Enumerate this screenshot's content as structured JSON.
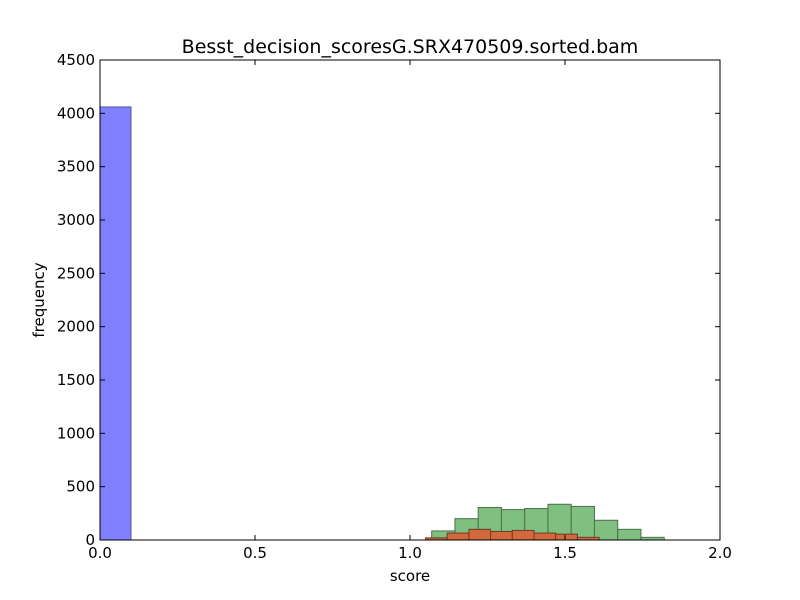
{
  "chart_data": {
    "type": "bar",
    "title": "Besst_decision_scoresG.SRX470509.sorted.bam",
    "xlabel": "score",
    "ylabel": "frequency",
    "xlim": [
      0.0,
      2.0
    ],
    "ylim": [
      0,
      4500
    ],
    "xticks": [
      "0.0",
      "0.5",
      "1.0",
      "1.5",
      "2.0"
    ],
    "yticks": [
      "0",
      "500",
      "1000",
      "1500",
      "2000",
      "2500",
      "3000",
      "3500",
      "4000",
      "4500"
    ],
    "grid": false,
    "series": [
      {
        "color": "#8080ff",
        "edge": "#55559a",
        "bins": [
          {
            "x0": 0.0,
            "x1": 0.1,
            "count": 4060
          }
        ]
      },
      {
        "color": "#7fbf7f",
        "edge": "#4d6e4d",
        "bins": [
          {
            "x0": 1.07,
            "x1": 1.145,
            "count": 85
          },
          {
            "x0": 1.145,
            "x1": 1.22,
            "count": 200
          },
          {
            "x0": 1.22,
            "x1": 1.295,
            "count": 305
          },
          {
            "x0": 1.295,
            "x1": 1.37,
            "count": 285
          },
          {
            "x0": 1.37,
            "x1": 1.445,
            "count": 295
          },
          {
            "x0": 1.445,
            "x1": 1.52,
            "count": 335
          },
          {
            "x0": 1.52,
            "x1": 1.595,
            "count": 315
          },
          {
            "x0": 1.595,
            "x1": 1.67,
            "count": 185
          },
          {
            "x0": 1.67,
            "x1": 1.745,
            "count": 100
          },
          {
            "x0": 1.745,
            "x1": 1.82,
            "count": 25
          }
        ]
      },
      {
        "color": "#d2693c",
        "edge": "#6e3a24",
        "bins": [
          {
            "x0": 1.05,
            "x1": 1.12,
            "count": 20
          },
          {
            "x0": 1.12,
            "x1": 1.19,
            "count": 65
          },
          {
            "x0": 1.19,
            "x1": 1.26,
            "count": 100
          },
          {
            "x0": 1.26,
            "x1": 1.33,
            "count": 80
          },
          {
            "x0": 1.33,
            "x1": 1.4,
            "count": 90
          },
          {
            "x0": 1.4,
            "x1": 1.47,
            "count": 65
          },
          {
            "x0": 1.47,
            "x1": 1.54,
            "count": 55
          },
          {
            "x0": 1.54,
            "x1": 1.61,
            "count": 25
          }
        ]
      }
    ]
  }
}
